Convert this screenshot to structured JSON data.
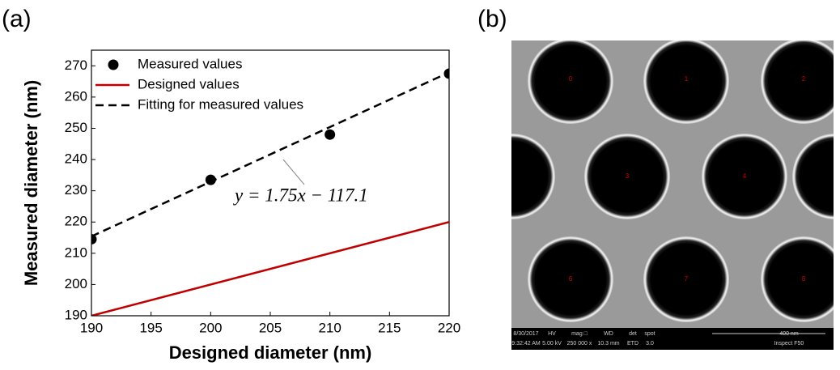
{
  "chart_data": {
    "type": "line",
    "panel_label": "(a)",
    "x_label": "Designed diameter (nm)",
    "y_label": "Measured diameter (nm)",
    "annotation": "y = 1.75x − 117.1",
    "xlim": [
      190,
      220
    ],
    "xticks": [
      190,
      195,
      200,
      205,
      210,
      215,
      220
    ],
    "ylim": [
      190,
      275
    ],
    "yticks": [
      190,
      200,
      210,
      220,
      230,
      240,
      250,
      260,
      270
    ],
    "legend": "upper left",
    "series": [
      {
        "name": "Measured values",
        "color": "#000000",
        "style": "marker",
        "x": [
          190,
          200,
          210,
          220
        ],
        "values": [
          214.5,
          233.5,
          248,
          267.5
        ]
      },
      {
        "name": "Designed values",
        "color": "#c00000",
        "style": "solid",
        "x": [
          190,
          220
        ],
        "values": [
          190,
          220
        ]
      },
      {
        "name": "Fitting for measured values",
        "color": "#000000",
        "style": "dashed",
        "x": [
          190,
          220
        ],
        "values": [
          215.4,
          267.9
        ]
      }
    ]
  },
  "sem_image": {
    "panel_label": "(b)",
    "hole_labels": [
      "0",
      "1",
      "2",
      "3",
      "4",
      "6",
      "7",
      "8"
    ],
    "info_top": [
      "8/30/2017",
      "HV",
      "mag □",
      "WD",
      "det",
      "spot",
      "400 nm"
    ],
    "info_bottom": [
      "9:32:42 AM",
      "5.00 kV",
      "250 000 x",
      "10.3 mm",
      "ETD",
      "3.0",
      "Inspect F50"
    ]
  }
}
